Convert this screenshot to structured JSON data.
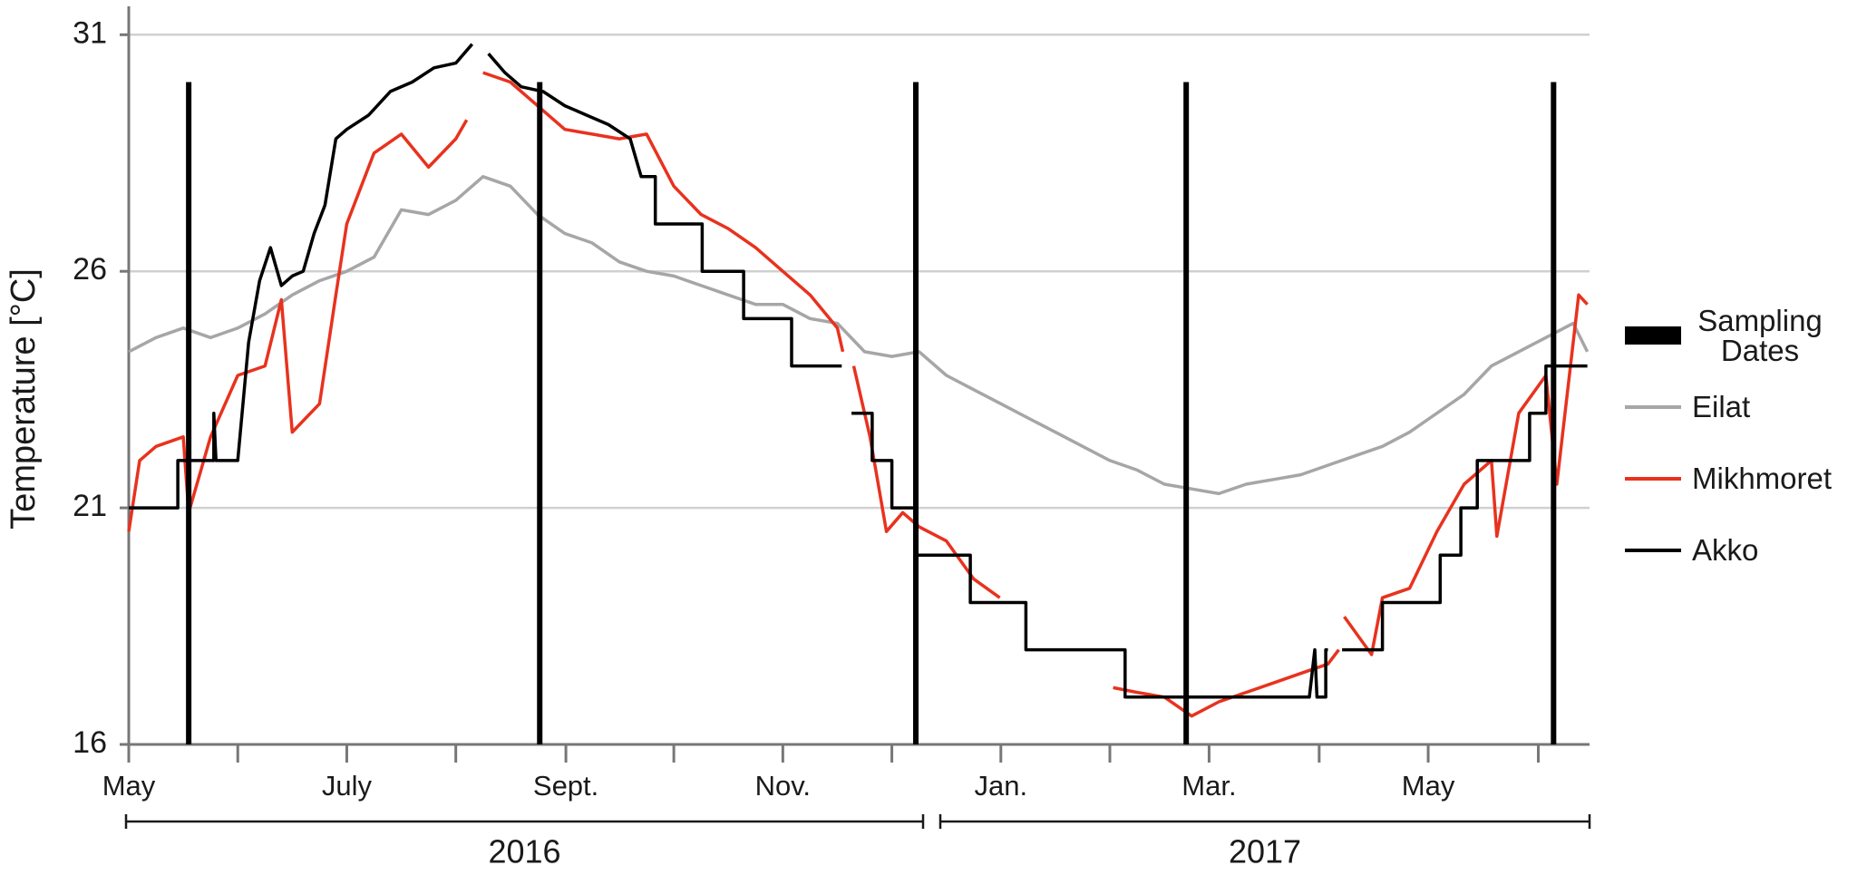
{
  "chart_data": {
    "type": "line",
    "y_label": "Temperature [°C]",
    "ylim": [
      16,
      31.6
    ],
    "yticks": [
      16,
      21,
      26,
      31
    ],
    "grid": true,
    "xlim": [
      0,
      13.4
    ],
    "xticks": [
      {
        "value": 0,
        "label": "May"
      },
      {
        "value": 1.0,
        "label": null
      },
      {
        "value": 2.0,
        "label": "July"
      },
      {
        "value": 3.0,
        "label": null
      },
      {
        "value": 4.01,
        "label": "Sept."
      },
      {
        "value": 5.0,
        "label": null
      },
      {
        "value": 6.0,
        "label": "Nov."
      },
      {
        "value": 7.0,
        "label": null
      },
      {
        "value": 8.0,
        "label": "Jan."
      },
      {
        "value": 9.0,
        "label": null
      },
      {
        "value": 9.91,
        "label": "Mar."
      },
      {
        "value": 10.92,
        "label": null
      },
      {
        "value": 11.92,
        "label": "May"
      },
      {
        "value": 12.93,
        "label": null
      }
    ],
    "x_groups": [
      "2016",
      "2017"
    ],
    "legend": "right",
    "series": [
      {
        "name": "Sampling Dates",
        "color": "#000000",
        "mark": "vline",
        "x": [
          0.55,
          3.77,
          7.22,
          9.7,
          13.07
        ],
        "values": [
          30,
          30,
          30,
          30,
          30
        ]
      },
      {
        "name": "Eilat",
        "color": "#a6a6a6",
        "mark": "line",
        "x": [
          0,
          0.25,
          0.5,
          0.75,
          1,
          1.25,
          1.5,
          1.75,
          2,
          2.25,
          2.5,
          2.75,
          3,
          3.25,
          3.5,
          3.75,
          4,
          4.25,
          4.5,
          4.75,
          5,
          5.25,
          5.5,
          5.75,
          6,
          6.25,
          6.5,
          6.75,
          7,
          7.25,
          7.5,
          7.75,
          8,
          8.25,
          8.5,
          8.75,
          9,
          9.25,
          9.5,
          9.75,
          10,
          10.25,
          10.5,
          10.75,
          11,
          11.25,
          11.5,
          11.75,
          12,
          12.25,
          12.5,
          12.75,
          13,
          13.25,
          13.38
        ],
        "values": [
          24.3,
          24.6,
          24.8,
          24.6,
          24.8,
          25.1,
          25.5,
          25.8,
          26.0,
          26.3,
          27.3,
          27.2,
          27.5,
          28.0,
          27.8,
          27.2,
          26.8,
          26.6,
          26.2,
          26.0,
          25.9,
          25.7,
          25.5,
          25.3,
          25.3,
          25.0,
          24.9,
          24.3,
          24.2,
          24.3,
          23.8,
          23.5,
          23.2,
          22.9,
          22.6,
          22.3,
          22.0,
          21.8,
          21.5,
          21.4,
          21.3,
          21.5,
          21.6,
          21.7,
          21.9,
          22.1,
          22.3,
          22.6,
          23.0,
          23.4,
          24.0,
          24.3,
          24.6,
          24.9,
          24.3
        ]
      },
      {
        "name": "Mikhmoret",
        "color": "#e8321e",
        "mark": "line",
        "x": [
          0,
          0.1,
          0.25,
          0.5,
          0.55,
          0.75,
          1.0,
          1.25,
          1.4,
          1.5,
          1.75,
          1.9,
          2.0,
          2.25,
          2.5,
          2.75,
          3.0,
          3.1,
          3.17,
          3.25,
          3.5,
          3.75,
          4.0,
          4.25,
          4.5,
          4.75,
          5.0,
          5.25,
          5.5,
          5.75,
          6.0,
          6.25,
          6.5,
          6.55,
          6.6,
          6.65,
          6.8,
          6.95,
          7.1,
          7.25,
          7.5,
          7.75,
          7.99,
          8.5,
          9.03,
          9.25,
          9.5,
          9.75,
          10.0,
          10.25,
          10.5,
          10.75,
          11.0,
          11.1,
          11.12,
          11.15,
          11.4,
          11.5,
          11.75,
          12.0,
          12.25,
          12.5,
          12.55,
          12.75,
          13.0,
          13.1,
          13.25,
          13.3,
          13.38
        ],
        "values": [
          20.5,
          22.0,
          22.3,
          22.5,
          20.9,
          22.5,
          23.8,
          24.0,
          25.4,
          22.6,
          23.2,
          25.5,
          27.0,
          28.5,
          28.9,
          28.2,
          28.8,
          29.2,
          null,
          30.2,
          30.0,
          29.5,
          29.0,
          28.9,
          28.8,
          28.9,
          27.8,
          27.2,
          26.9,
          26.5,
          26.0,
          25.5,
          24.8,
          24.3,
          null,
          24.0,
          22.5,
          20.5,
          20.9,
          20.6,
          20.3,
          19.5,
          19.1,
          null,
          17.2,
          17.1,
          17.0,
          16.6,
          16.9,
          17.1,
          17.3,
          17.5,
          17.7,
          18.0,
          null,
          18.7,
          17.9,
          19.1,
          19.3,
          20.5,
          21.5,
          22.0,
          20.4,
          23.0,
          23.8,
          21.5,
          24.5,
          25.5,
          25.3
        ]
      },
      {
        "name": "Akko",
        "color": "#000000",
        "mark": "line",
        "x": [
          0,
          0.45,
          0.45,
          0.78,
          0.78,
          0.8,
          1.0,
          1.1,
          1.2,
          1.3,
          1.4,
          1.5,
          1.6,
          1.7,
          1.8,
          1.9,
          2.0,
          2.2,
          2.4,
          2.6,
          2.8,
          3.0,
          3.15,
          3.22,
          3.3,
          3.45,
          3.6,
          3.8,
          4.0,
          4.2,
          4.4,
          4.6,
          4.7,
          4.83,
          4.83,
          5.26,
          5.26,
          5.64,
          5.64,
          6.08,
          6.08,
          6.54,
          6.58,
          6.63,
          6.82,
          6.82,
          7.0,
          7.0,
          7.23,
          7.23,
          7.72,
          7.72,
          8.23,
          8.23,
          9.14,
          9.14,
          10.83,
          10.88,
          10.9,
          10.98,
          10.98,
          11.0,
          11.06,
          11.13,
          11.5,
          11.5,
          12.03,
          12.03,
          12.22,
          12.22,
          12.37,
          12.37,
          12.85,
          12.85,
          13.0,
          13.0,
          13.38
        ],
        "values": [
          21,
          21,
          22,
          22,
          23,
          22,
          22,
          24.5,
          25.8,
          26.5,
          25.7,
          25.9,
          26.0,
          26.8,
          27.4,
          28.8,
          29.0,
          29.3,
          29.8,
          30.0,
          30.3,
          30.4,
          30.8,
          null,
          30.6,
          30.2,
          29.9,
          29.8,
          29.5,
          29.3,
          29.1,
          28.8,
          28.0,
          28.0,
          27.0,
          27.0,
          26.0,
          26.0,
          25.0,
          25.0,
          24.0,
          24.0,
          null,
          23.0,
          23.0,
          22.0,
          22.0,
          21.0,
          21.0,
          20.0,
          20.0,
          19.0,
          19.0,
          18.0,
          18.0,
          17.0,
          17.0,
          18.0,
          17.0,
          17.0,
          18.0,
          18.0,
          null,
          18.0,
          18.0,
          19.0,
          19.0,
          20.0,
          20.0,
          21.0,
          21.0,
          22.0,
          22.0,
          23.0,
          23.0,
          24.0,
          24.0
        ]
      }
    ]
  }
}
